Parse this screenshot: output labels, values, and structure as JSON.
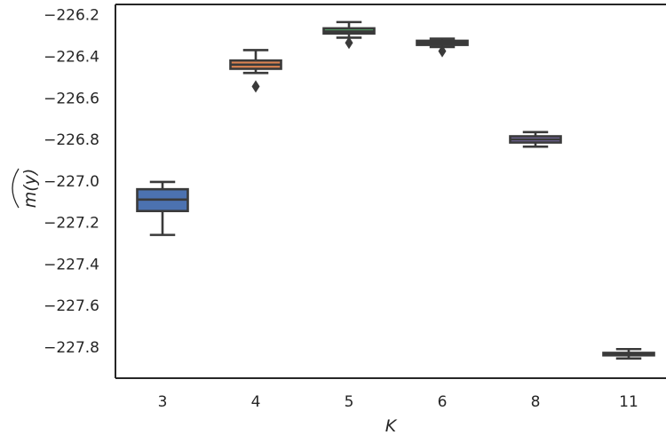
{
  "chart_data": {
    "type": "box",
    "xlabel": "K",
    "ylabel": "m(y)",
    "ylabel_decoration": "wide-hat",
    "ylim": [
      -227.95,
      -226.15
    ],
    "yticks": [
      -226.2,
      -226.4,
      -226.6,
      -226.8,
      -227.0,
      -227.2,
      -227.4,
      -227.6,
      -227.8
    ],
    "ytick_labels": [
      "−226.2",
      "−226.4",
      "−226.6",
      "−226.8",
      "−227.0",
      "−227.2",
      "−227.4",
      "−227.6",
      "−227.8"
    ],
    "categories": [
      "3",
      "4",
      "5",
      "6",
      "8",
      "11"
    ],
    "grid": false,
    "boxes": [
      {
        "category": "3",
        "whislo": -227.26,
        "q1": -227.145,
        "med": -227.09,
        "q3": -227.04,
        "whishi": -227.005,
        "fliers": [],
        "color": "#4c72b0"
      },
      {
        "category": "4",
        "whislo": -226.48,
        "q1": -226.46,
        "med": -226.44,
        "q3": -226.42,
        "whishi": -226.37,
        "fliers": [
          -226.545
        ],
        "color": "#dd8452"
      },
      {
        "category": "5",
        "whislo": -226.31,
        "q1": -226.29,
        "med": -226.28,
        "q3": -226.265,
        "whishi": -226.235,
        "fliers": [
          -226.335
        ],
        "color": "#55a868"
      },
      {
        "category": "6",
        "whislo": -226.355,
        "q1": -226.345,
        "med": -226.335,
        "q3": -226.325,
        "whishi": -226.315,
        "fliers": [
          -226.375
        ],
        "color": "#c44e52"
      },
      {
        "category": "8",
        "whislo": -226.835,
        "q1": -226.815,
        "med": -226.8,
        "q3": -226.785,
        "whishi": -226.765,
        "fliers": [],
        "color": "#8172b3"
      },
      {
        "category": "11",
        "whislo": -227.855,
        "q1": -227.84,
        "med": -227.835,
        "q3": -227.828,
        "whishi": -227.81,
        "fliers": [],
        "color": "#937860"
      }
    ],
    "line_color": "#3a3a3a",
    "axis_color": "#262626"
  }
}
